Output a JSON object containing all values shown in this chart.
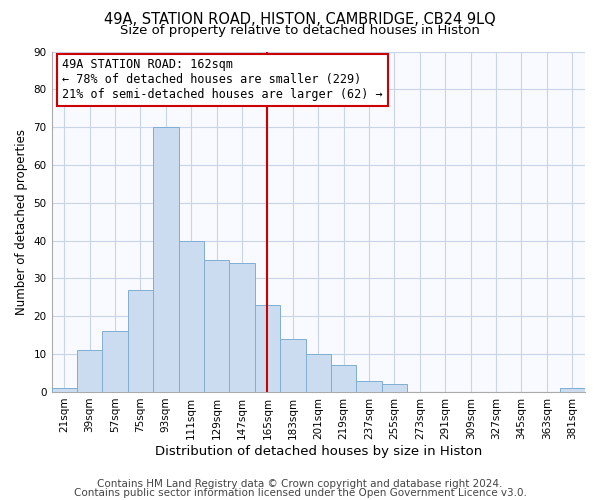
{
  "title": "49A, STATION ROAD, HISTON, CAMBRIDGE, CB24 9LQ",
  "subtitle": "Size of property relative to detached houses in Histon",
  "xlabel": "Distribution of detached houses by size in Histon",
  "ylabel": "Number of detached properties",
  "bin_labels": [
    "21sqm",
    "39sqm",
    "57sqm",
    "75sqm",
    "93sqm",
    "111sqm",
    "129sqm",
    "147sqm",
    "165sqm",
    "183sqm",
    "201sqm",
    "219sqm",
    "237sqm",
    "255sqm",
    "273sqm",
    "291sqm",
    "309sqm",
    "327sqm",
    "345sqm",
    "363sqm",
    "381sqm"
  ],
  "bar_heights": [
    1,
    11,
    16,
    27,
    70,
    40,
    35,
    34,
    23,
    14,
    10,
    7,
    3,
    2,
    0,
    0,
    0,
    0,
    0,
    0,
    1
  ],
  "bar_color": "#ccdcf0",
  "bar_edge_color": "#7fafd4",
  "vline_color": "#cc0000",
  "annotation_title": "49A STATION ROAD: 162sqm",
  "annotation_line1": "← 78% of detached houses are smaller (229)",
  "annotation_line2": "21% of semi-detached houses are larger (62) →",
  "annotation_box_color": "#ffffff",
  "annotation_box_edge": "#cc0000",
  "ylim": [
    0,
    90
  ],
  "grid_color": "#c8d4e8",
  "footer1": "Contains HM Land Registry data © Crown copyright and database right 2024.",
  "footer2": "Contains public sector information licensed under the Open Government Licence v3.0.",
  "title_fontsize": 10.5,
  "subtitle_fontsize": 9.5,
  "xlabel_fontsize": 9.5,
  "ylabel_fontsize": 8.5,
  "tick_fontsize": 7.5,
  "annotation_fontsize": 8.5,
  "footer_fontsize": 7.5
}
